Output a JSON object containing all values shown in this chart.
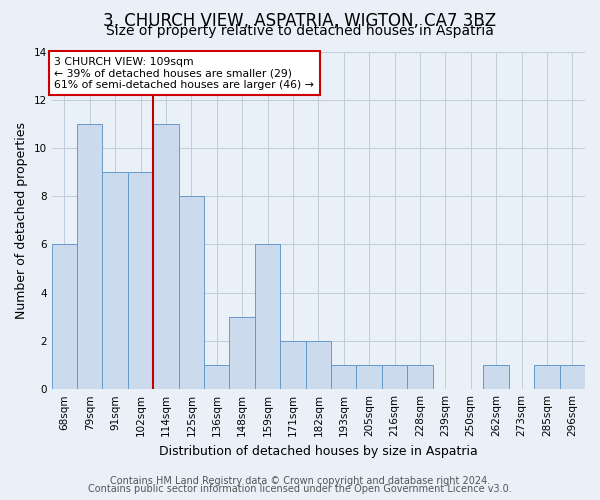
{
  "title": "3, CHURCH VIEW, ASPATRIA, WIGTON, CA7 3BZ",
  "subtitle": "Size of property relative to detached houses in Aspatria",
  "xlabel": "Distribution of detached houses by size in Aspatria",
  "ylabel": "Number of detached properties",
  "bin_labels": [
    "68sqm",
    "79sqm",
    "91sqm",
    "102sqm",
    "114sqm",
    "125sqm",
    "136sqm",
    "148sqm",
    "159sqm",
    "171sqm",
    "182sqm",
    "193sqm",
    "205sqm",
    "216sqm",
    "228sqm",
    "239sqm",
    "250sqm",
    "262sqm",
    "273sqm",
    "285sqm",
    "296sqm"
  ],
  "bar_values": [
    6,
    11,
    9,
    9,
    11,
    8,
    1,
    3,
    6,
    2,
    2,
    1,
    1,
    1,
    1,
    0,
    0,
    1,
    0,
    1,
    1
  ],
  "bar_color": "#ccdaee",
  "bar_edge_color": "#6699cc",
  "red_line_x": 3.5,
  "annotation_line1": "3 CHURCH VIEW: 109sqm",
  "annotation_line2": "← 39% of detached houses are smaller (29)",
  "annotation_line3": "61% of semi-detached houses are larger (46) →",
  "annotation_box_edge": "#cc0000",
  "ylim": [
    0,
    14
  ],
  "yticks": [
    0,
    2,
    4,
    6,
    8,
    10,
    12,
    14
  ],
  "footer1": "Contains HM Land Registry data © Crown copyright and database right 2024.",
  "footer2": "Contains public sector information licensed under the Open Government Licence v3.0.",
  "background_color": "#eaf0f8",
  "plot_bg_color": "#eaf0f8",
  "grid_color": "#c0ccd8",
  "title_fontsize": 12,
  "subtitle_fontsize": 10,
  "axis_label_fontsize": 9,
  "tick_fontsize": 7.5,
  "footer_fontsize": 7
}
